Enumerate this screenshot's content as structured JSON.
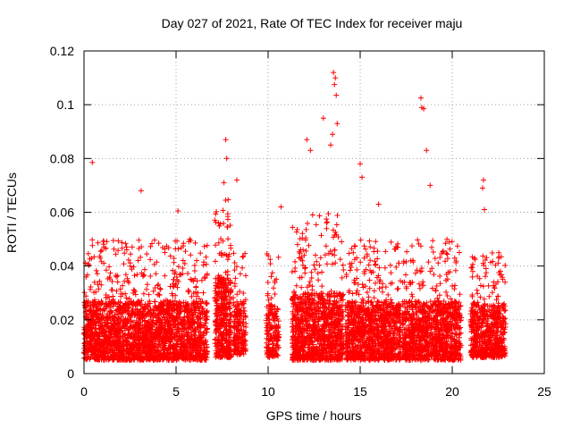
{
  "chart_data": {
    "type": "scatter",
    "title": "Day 027 of 2021, Rate Of TEC Index for receiver maju",
    "xlabel": "GPS time / hours",
    "ylabel": "ROTI / TECUs",
    "xlim": [
      0,
      25
    ],
    "ylim": [
      0,
      0.12
    ],
    "x_ticks": [
      0,
      5,
      10,
      15,
      20,
      25
    ],
    "x_tick_labels": [
      "0",
      "5",
      "10",
      "15",
      "20",
      "25"
    ],
    "y_ticks": [
      0,
      0.02,
      0.04,
      0.06,
      0.08,
      0.1,
      0.12
    ],
    "y_tick_labels": [
      "0",
      "0.02",
      "0.04",
      "0.06",
      "0.08",
      "0.1",
      "0.12"
    ],
    "grid": true,
    "marker": "+",
    "series_color": "#ff0000",
    "series": [
      {
        "name": "ROTI",
        "segments": [
          {
            "x": [
              0.0,
              6.7
            ],
            "density": 2400,
            "base": 0.005,
            "spread": 0.022,
            "peak": 0.05
          },
          {
            "x": [
              7.1,
              8.0
            ],
            "density": 420,
            "base": 0.006,
            "spread": 0.03,
            "peak": 0.065
          },
          {
            "x": [
              8.1,
              8.8
            ],
            "density": 200,
            "base": 0.007,
            "spread": 0.02,
            "peak": 0.045
          },
          {
            "x": [
              9.9,
              10.6
            ],
            "density": 180,
            "base": 0.006,
            "spread": 0.02,
            "peak": 0.045
          },
          {
            "x": [
              11.3,
              14.1
            ],
            "density": 1100,
            "base": 0.005,
            "spread": 0.025,
            "peak": 0.06
          },
          {
            "x": [
              14.2,
              17.2
            ],
            "density": 1100,
            "base": 0.005,
            "spread": 0.022,
            "peak": 0.05
          },
          {
            "x": [
              17.3,
              20.5
            ],
            "density": 1100,
            "base": 0.005,
            "spread": 0.022,
            "peak": 0.05
          },
          {
            "x": [
              21.0,
              22.9
            ],
            "density": 650,
            "base": 0.006,
            "spread": 0.02,
            "peak": 0.045
          }
        ],
        "outliers": [
          {
            "x": 0.45,
            "y": 0.0785
          },
          {
            "x": 3.1,
            "y": 0.068
          },
          {
            "x": 5.1,
            "y": 0.0605
          },
          {
            "x": 7.7,
            "y": 0.087
          },
          {
            "x": 7.75,
            "y": 0.08
          },
          {
            "x": 7.6,
            "y": 0.071
          },
          {
            "x": 8.3,
            "y": 0.072
          },
          {
            "x": 10.7,
            "y": 0.062
          },
          {
            "x": 12.1,
            "y": 0.087
          },
          {
            "x": 12.3,
            "y": 0.083
          },
          {
            "x": 13.0,
            "y": 0.095
          },
          {
            "x": 13.55,
            "y": 0.112
          },
          {
            "x": 13.65,
            "y": 0.11
          },
          {
            "x": 13.6,
            "y": 0.1075
          },
          {
            "x": 13.7,
            "y": 0.1035
          },
          {
            "x": 13.75,
            "y": 0.093
          },
          {
            "x": 13.5,
            "y": 0.089
          },
          {
            "x": 13.4,
            "y": 0.085
          },
          {
            "x": 15.0,
            "y": 0.078
          },
          {
            "x": 15.1,
            "y": 0.073
          },
          {
            "x": 16.0,
            "y": 0.063
          },
          {
            "x": 18.3,
            "y": 0.1025
          },
          {
            "x": 18.35,
            "y": 0.099
          },
          {
            "x": 18.45,
            "y": 0.0985
          },
          {
            "x": 18.6,
            "y": 0.083
          },
          {
            "x": 18.8,
            "y": 0.07
          },
          {
            "x": 21.7,
            "y": 0.072
          },
          {
            "x": 21.65,
            "y": 0.069
          },
          {
            "x": 21.75,
            "y": 0.061
          }
        ]
      }
    ]
  }
}
